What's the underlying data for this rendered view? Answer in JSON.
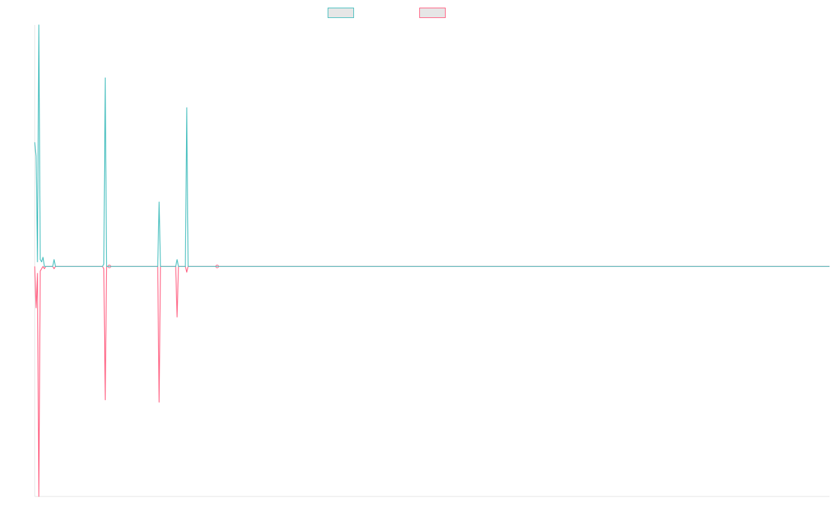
{
  "chart_data": {
    "type": "line",
    "title": "",
    "xlabel": "",
    "ylabel": "",
    "grid": false,
    "legend_position": "top-center",
    "ylim": [
      -10,
      10.5
    ],
    "xlim": [
      0,
      575
    ],
    "series": [
      {
        "color": "#4bc0c0",
        "label": "",
        "points": [
          [
            0,
            5.4
          ],
          [
            1,
            4.8
          ],
          [
            2,
            0.2
          ],
          [
            3,
            10.5
          ],
          [
            4,
            0.3
          ],
          [
            5,
            0.2
          ],
          [
            6,
            0.4
          ],
          [
            7,
            0
          ],
          [
            8,
            0
          ],
          [
            9,
            0
          ],
          [
            10,
            0
          ],
          [
            11,
            0
          ],
          [
            12,
            0
          ],
          [
            13,
            0
          ],
          [
            14,
            0.3
          ],
          [
            15,
            0
          ],
          [
            16,
            0
          ],
          [
            40,
            0
          ],
          [
            49,
            0
          ],
          [
            50,
            0.1
          ],
          [
            51,
            8.2
          ],
          [
            52,
            0
          ],
          [
            53,
            0
          ],
          [
            54,
            0
          ],
          [
            88,
            0
          ],
          [
            89,
            0
          ],
          [
            90,
            2.8
          ],
          [
            91,
            0
          ],
          [
            92,
            0
          ],
          [
            102,
            0
          ],
          [
            103,
            0.3
          ],
          [
            104,
            0
          ],
          [
            105,
            0
          ],
          [
            108,
            0
          ],
          [
            109,
            0
          ],
          [
            110,
            6.9
          ],
          [
            111,
            0
          ],
          [
            112,
            0
          ],
          [
            131,
            0
          ],
          [
            575,
            0
          ]
        ]
      },
      {
        "color": "#ff6384",
        "label": "",
        "points": [
          [
            0,
            0
          ],
          [
            1,
            -1.8
          ],
          [
            2,
            -0.3
          ],
          [
            3,
            -10
          ],
          [
            4,
            -0.2
          ],
          [
            5,
            -0.1
          ],
          [
            6,
            0
          ],
          [
            7,
            -0.1
          ],
          [
            8,
            0
          ],
          [
            9,
            0
          ],
          [
            10,
            0
          ],
          [
            11,
            0
          ],
          [
            12,
            0
          ],
          [
            13,
            0
          ],
          [
            14,
            -0.1
          ],
          [
            15,
            0
          ],
          [
            16,
            0
          ],
          [
            40,
            0
          ],
          [
            49,
            0
          ],
          [
            50,
            -0.1
          ],
          [
            51,
            -5.8
          ],
          [
            52,
            0
          ],
          [
            53,
            0
          ],
          [
            54,
            0
          ],
          [
            88,
            0
          ],
          [
            89,
            0
          ],
          [
            90,
            -5.9
          ],
          [
            91,
            0
          ],
          [
            92,
            0
          ],
          [
            102,
            0
          ],
          [
            103,
            -2.2
          ],
          [
            104,
            0
          ],
          [
            105,
            0
          ],
          [
            108,
            0
          ],
          [
            109,
            0
          ],
          [
            110,
            -0.25
          ],
          [
            111,
            0
          ],
          [
            112,
            0
          ],
          [
            131,
            0
          ],
          [
            575,
            0
          ]
        ],
        "markers": [
          [
            54,
            0
          ],
          [
            132,
            0
          ]
        ]
      }
    ]
  }
}
